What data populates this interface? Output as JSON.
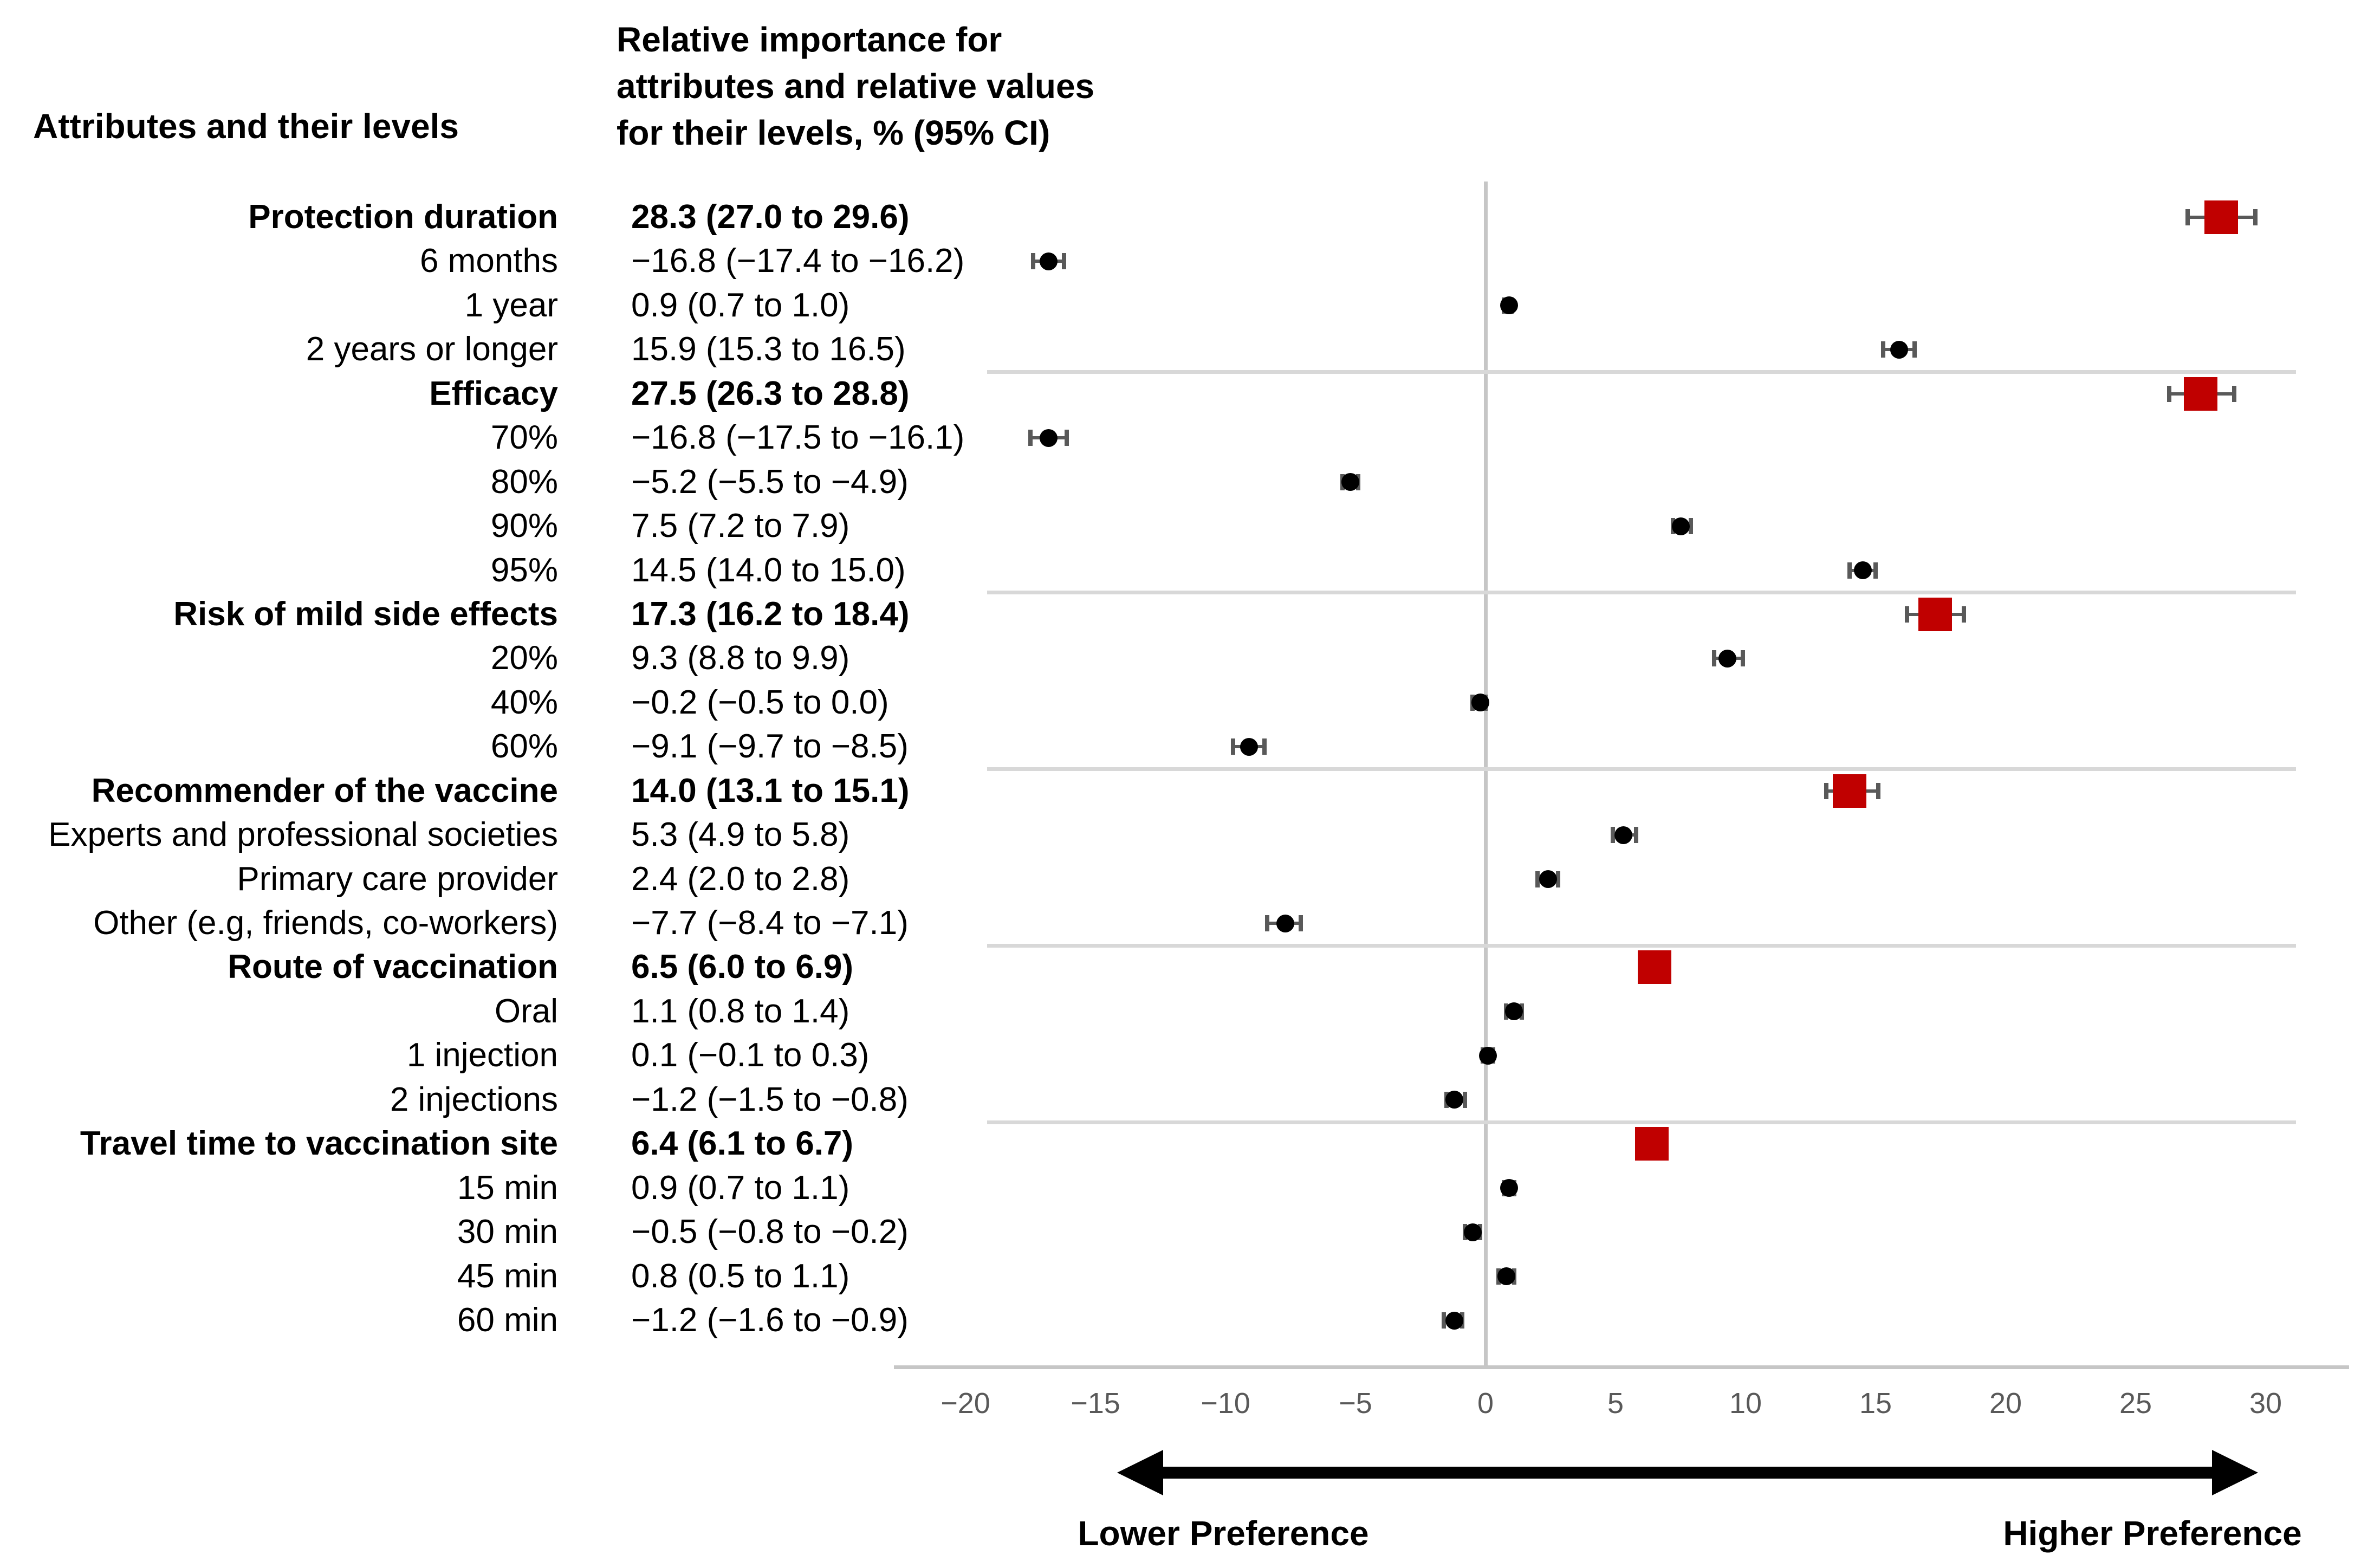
{
  "header": {
    "col1": "Attributes and their levels",
    "col2_lines": [
      "Relative importance for",
      "attributes and relative values",
      "for their levels, % (95% CI)"
    ]
  },
  "axis": {
    "ticks": [
      {
        "v": -20,
        "label": "−20"
      },
      {
        "v": -15,
        "label": "−15"
      },
      {
        "v": -10,
        "label": "−10"
      },
      {
        "v": -5,
        "label": "−5"
      },
      {
        "v": 0,
        "label": "0"
      },
      {
        "v": 5,
        "label": "5"
      },
      {
        "v": 10,
        "label": "10"
      },
      {
        "v": 15,
        "label": "15"
      },
      {
        "v": 20,
        "label": "20"
      },
      {
        "v": 25,
        "label": "25"
      },
      {
        "v": 30,
        "label": "30"
      }
    ],
    "lower_label": "Lower Preference",
    "higher_label": "Higher Preference"
  },
  "colors": {
    "attribute_marker": "#c00000",
    "level_marker": "#000000",
    "error_bar": "#595959",
    "zero_line": "#c6c6c6",
    "axis_line": "#c6c6c6",
    "separator": "#d8d8d8",
    "tick_text": "#595959"
  },
  "chart_data": {
    "type": "scatter",
    "subtype": "forest-plot-with-95CI",
    "xlabel": "",
    "ylabel": "",
    "xlim": [
      -23,
      33
    ],
    "grid": "zero-line-and-group-separators",
    "legend_position": "none",
    "rows": [
      {
        "label": "Protection duration",
        "value_text": "28.3 (27.0 to 29.6)",
        "est": 28.3,
        "lo": 27.0,
        "hi": 29.6,
        "kind": "attribute"
      },
      {
        "label": "6 months",
        "value_text": "−16.8 (−17.4 to −16.2)",
        "est": -16.8,
        "lo": -17.4,
        "hi": -16.2,
        "kind": "level"
      },
      {
        "label": "1 year",
        "value_text": "0.9 (0.7 to 1.0)",
        "est": 0.9,
        "lo": 0.7,
        "hi": 1.0,
        "kind": "level"
      },
      {
        "label": "2 years or longer",
        "value_text": "15.9 (15.3 to 16.5)",
        "est": 15.9,
        "lo": 15.3,
        "hi": 16.5,
        "kind": "level"
      },
      {
        "label": "Efficacy",
        "value_text": "27.5 (26.3 to 28.8)",
        "est": 27.5,
        "lo": 26.3,
        "hi": 28.8,
        "kind": "attribute"
      },
      {
        "label": "70%",
        "value_text": "−16.8 (−17.5 to −16.1)",
        "est": -16.8,
        "lo": -17.5,
        "hi": -16.1,
        "kind": "level"
      },
      {
        "label": "80%",
        "value_text": "−5.2 (−5.5 to −4.9)",
        "est": -5.2,
        "lo": -5.5,
        "hi": -4.9,
        "kind": "level"
      },
      {
        "label": "90%",
        "value_text": "7.5 (7.2 to 7.9)",
        "est": 7.5,
        "lo": 7.2,
        "hi": 7.9,
        "kind": "level"
      },
      {
        "label": "95%",
        "value_text": "14.5 (14.0 to 15.0)",
        "est": 14.5,
        "lo": 14.0,
        "hi": 15.0,
        "kind": "level"
      },
      {
        "label": "Risk of mild side effects",
        "value_text": "17.3 (16.2 to 18.4)",
        "est": 17.3,
        "lo": 16.2,
        "hi": 18.4,
        "kind": "attribute"
      },
      {
        "label": "20%",
        "value_text": "9.3 (8.8 to 9.9)",
        "est": 9.3,
        "lo": 8.8,
        "hi": 9.9,
        "kind": "level"
      },
      {
        "label": "40%",
        "value_text": "−0.2 (−0.5 to 0.0)",
        "est": -0.2,
        "lo": -0.5,
        "hi": 0.0,
        "kind": "level"
      },
      {
        "label": "60%",
        "value_text": "−9.1 (−9.7 to −8.5)",
        "est": -9.1,
        "lo": -9.7,
        "hi": -8.5,
        "kind": "level"
      },
      {
        "label": "Recommender of the vaccine",
        "value_text": "14.0 (13.1 to 15.1)",
        "est": 14.0,
        "lo": 13.1,
        "hi": 15.1,
        "kind": "attribute"
      },
      {
        "label": "Experts and professional societies",
        "value_text": "5.3 (4.9 to 5.8)",
        "est": 5.3,
        "lo": 4.9,
        "hi": 5.8,
        "kind": "level"
      },
      {
        "label": "Primary care provider",
        "value_text": "2.4 (2.0 to 2.8)",
        "est": 2.4,
        "lo": 2.0,
        "hi": 2.8,
        "kind": "level"
      },
      {
        "label": "Other (e.g, friends, co-workers)",
        "value_text": "−7.7 (−8.4 to −7.1)",
        "est": -7.7,
        "lo": -8.4,
        "hi": -7.1,
        "kind": "level"
      },
      {
        "label": "Route of vaccination",
        "value_text": "6.5 (6.0 to 6.9)",
        "est": 6.5,
        "lo": 6.0,
        "hi": 6.9,
        "kind": "attribute"
      },
      {
        "label": "Oral",
        "value_text": "1.1 (0.8 to 1.4)",
        "est": 1.1,
        "lo": 0.8,
        "hi": 1.4,
        "kind": "level"
      },
      {
        "label": "1 injection",
        "value_text": "0.1 (−0.1 to 0.3)",
        "est": 0.1,
        "lo": -0.1,
        "hi": 0.3,
        "kind": "level"
      },
      {
        "label": "2 injections",
        "value_text": "−1.2 (−1.5 to −0.8)",
        "est": -1.2,
        "lo": -1.5,
        "hi": -0.8,
        "kind": "level"
      },
      {
        "label": "Travel time to vaccination site",
        "value_text": "6.4 (6.1 to 6.7)",
        "est": 6.4,
        "lo": 6.1,
        "hi": 6.7,
        "kind": "attribute"
      },
      {
        "label": "15 min",
        "value_text": "0.9 (0.7 to 1.1)",
        "est": 0.9,
        "lo": 0.7,
        "hi": 1.1,
        "kind": "level"
      },
      {
        "label": "30 min",
        "value_text": "−0.5 (−0.8 to −0.2)",
        "est": -0.5,
        "lo": -0.8,
        "hi": -0.2,
        "kind": "level"
      },
      {
        "label": "45 min",
        "value_text": "0.8 (0.5 to 1.1)",
        "est": 0.8,
        "lo": 0.5,
        "hi": 1.1,
        "kind": "level"
      },
      {
        "label": "60 min",
        "value_text": "−1.2 (−1.6 to −0.9)",
        "est": -1.2,
        "lo": -1.6,
        "hi": -0.9,
        "kind": "level"
      }
    ]
  }
}
